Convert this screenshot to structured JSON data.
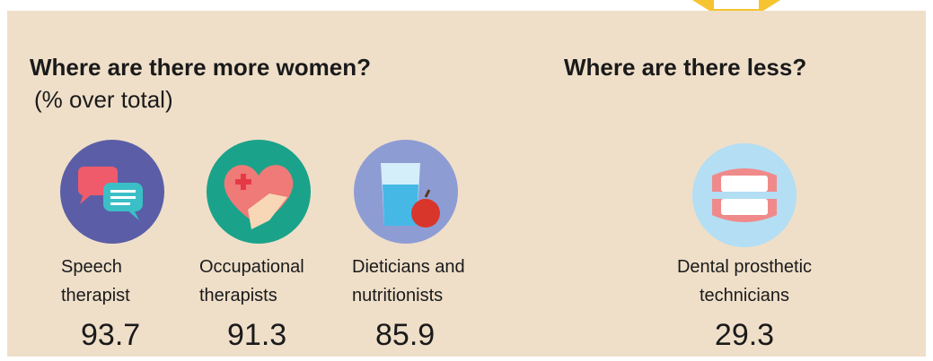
{
  "left": {
    "title": "Where are there more women?",
    "subtitle": "(% over total)",
    "items": [
      {
        "label": "Speech therapist",
        "value": 93.7
      },
      {
        "label": "Occupational therapists",
        "value": 91.3
      },
      {
        "label": "Dieticians and nutritionists",
        "value": 85.9
      }
    ]
  },
  "right": {
    "title": "Where are there less?",
    "items": [
      {
        "label": "Dental prosthetic technicians",
        "value": 29.3
      }
    ]
  }
}
